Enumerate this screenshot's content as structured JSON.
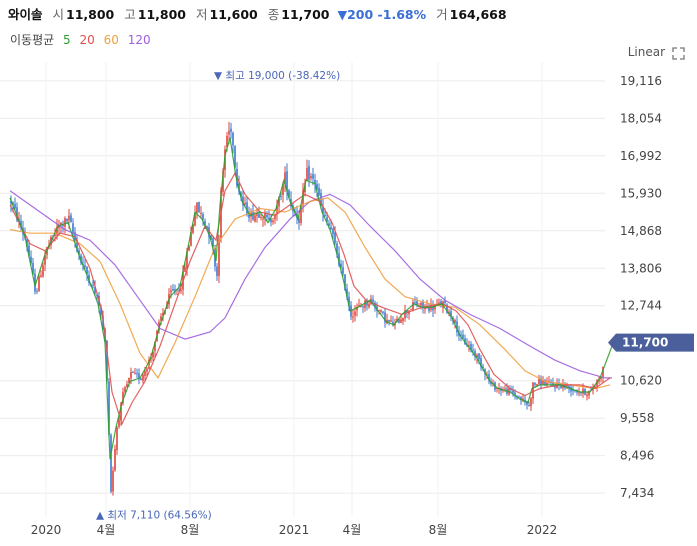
{
  "header": {
    "name": "와이솔",
    "open_label": "시",
    "open": "11,800",
    "high_label": "고",
    "high": "11,800",
    "low_label": "저",
    "low": "11,600",
    "close_label": "종",
    "close": "11,700",
    "change": "▼200 -1.68%",
    "volume_label": "거",
    "volume": "164,668"
  },
  "ma_legend": {
    "title": "이동평균",
    "items": [
      {
        "label": "5",
        "color": "#2e9e2e"
      },
      {
        "label": "20",
        "color": "#e05050"
      },
      {
        "label": "60",
        "color": "#f0a040"
      },
      {
        "label": "120",
        "color": "#9d5fe0"
      }
    ]
  },
  "scale_mode": "Linear",
  "expand_icon": "expand-icon",
  "colors": {
    "up": "#e0403a",
    "down": "#3a78d0",
    "current_tag": "#4a5f9b",
    "grid": "#ececec"
  },
  "chart_data": {
    "type": "candlestick",
    "y_ticks": [
      "19,116",
      "18,054",
      "16,992",
      "15,930",
      "14,868",
      "13,806",
      "12,744",
      "10,620",
      "9,558",
      "8,496",
      "7,434"
    ],
    "ylim": [
      6900,
      19650
    ],
    "x_ticks": [
      "2020",
      "4월",
      "8월",
      "2021",
      "4월",
      "8월",
      "2022"
    ],
    "max_label": "최고 19,000 (-38.42%)",
    "min_label": "최저 7,110 (64.56%)",
    "max_value": 19000,
    "min_value": 7110,
    "current_price": "11,700",
    "current_value": 11700,
    "close_path": [
      [
        0,
        15700
      ],
      [
        15,
        14600
      ],
      [
        25,
        13100
      ],
      [
        35,
        14300
      ],
      [
        48,
        15000
      ],
      [
        58,
        15200
      ],
      [
        70,
        14000
      ],
      [
        80,
        13400
      ],
      [
        88,
        12800
      ],
      [
        95,
        11500
      ],
      [
        100,
        7500
      ],
      [
        106,
        9300
      ],
      [
        112,
        10200
      ],
      [
        120,
        10800
      ],
      [
        130,
        10700
      ],
      [
        140,
        11300
      ],
      [
        150,
        12400
      ],
      [
        160,
        13100
      ],
      [
        170,
        13300
      ],
      [
        178,
        14500
      ],
      [
        185,
        15600
      ],
      [
        192,
        15200
      ],
      [
        200,
        14700
      ],
      [
        206,
        13600
      ],
      [
        210,
        15900
      ],
      [
        215,
        17500
      ],
      [
        220,
        17800
      ],
      [
        226,
        16300
      ],
      [
        232,
        15600
      ],
      [
        240,
        15300
      ],
      [
        250,
        15400
      ],
      [
        258,
        15100
      ],
      [
        266,
        15500
      ],
      [
        274,
        16400
      ],
      [
        280,
        15600
      ],
      [
        288,
        15200
      ],
      [
        296,
        16500
      ],
      [
        305,
        16200
      ],
      [
        312,
        15300
      ],
      [
        320,
        14900
      ],
      [
        328,
        14000
      ],
      [
        334,
        13300
      ],
      [
        340,
        12500
      ],
      [
        348,
        12700
      ],
      [
        360,
        12900
      ],
      [
        368,
        12600
      ],
      [
        376,
        12300
      ],
      [
        384,
        12200
      ],
      [
        392,
        12500
      ],
      [
        404,
        12800
      ],
      [
        412,
        12700
      ],
      [
        422,
        12700
      ],
      [
        432,
        12800
      ],
      [
        442,
        12400
      ],
      [
        450,
        11800
      ],
      [
        458,
        11600
      ],
      [
        466,
        11300
      ],
      [
        474,
        10900
      ],
      [
        480,
        10500
      ],
      [
        488,
        10400
      ],
      [
        500,
        10300
      ],
      [
        510,
        10100
      ],
      [
        518,
        9900
      ],
      [
        522,
        10500
      ],
      [
        530,
        10600
      ],
      [
        540,
        10500
      ],
      [
        550,
        10500
      ],
      [
        560,
        10400
      ],
      [
        570,
        10300
      ],
      [
        580,
        10300
      ],
      [
        590,
        10800
      ],
      [
        598,
        11500
      ],
      [
        602,
        11700
      ]
    ],
    "ma5": [
      [
        0,
        15800
      ],
      [
        15,
        14700
      ],
      [
        25,
        13300
      ],
      [
        35,
        14200
      ],
      [
        48,
        15000
      ],
      [
        58,
        15100
      ],
      [
        70,
        14100
      ],
      [
        80,
        13400
      ],
      [
        88,
        12800
      ],
      [
        95,
        11700
      ],
      [
        100,
        8400
      ],
      [
        106,
        9300
      ],
      [
        112,
        10000
      ],
      [
        120,
        10600
      ],
      [
        130,
        10700
      ],
      [
        140,
        11200
      ],
      [
        150,
        12200
      ],
      [
        160,
        13000
      ],
      [
        170,
        13300
      ],
      [
        178,
        14400
      ],
      [
        185,
        15400
      ],
      [
        192,
        15200
      ],
      [
        200,
        14700
      ],
      [
        206,
        14000
      ],
      [
        210,
        15600
      ],
      [
        215,
        17000
      ],
      [
        220,
        17500
      ],
      [
        226,
        16400
      ],
      [
        232,
        15700
      ],
      [
        240,
        15300
      ],
      [
        250,
        15400
      ],
      [
        258,
        15100
      ],
      [
        266,
        15500
      ],
      [
        274,
        16300
      ],
      [
        280,
        15700
      ],
      [
        288,
        15200
      ],
      [
        296,
        16300
      ],
      [
        305,
        16200
      ],
      [
        312,
        15400
      ],
      [
        320,
        14900
      ],
      [
        328,
        14100
      ],
      [
        334,
        13400
      ],
      [
        340,
        12600
      ],
      [
        348,
        12700
      ],
      [
        360,
        12900
      ],
      [
        368,
        12600
      ],
      [
        376,
        12300
      ],
      [
        384,
        12200
      ],
      [
        392,
        12500
      ],
      [
        404,
        12800
      ],
      [
        412,
        12700
      ],
      [
        422,
        12700
      ],
      [
        432,
        12800
      ],
      [
        442,
        12400
      ],
      [
        450,
        11900
      ],
      [
        458,
        11600
      ],
      [
        466,
        11300
      ],
      [
        474,
        10900
      ],
      [
        480,
        10600
      ],
      [
        488,
        10400
      ],
      [
        500,
        10300
      ],
      [
        510,
        10100
      ],
      [
        518,
        10000
      ],
      [
        522,
        10400
      ],
      [
        530,
        10500
      ],
      [
        540,
        10500
      ],
      [
        550,
        10500
      ],
      [
        560,
        10400
      ],
      [
        570,
        10300
      ],
      [
        580,
        10300
      ],
      [
        590,
        10700
      ],
      [
        598,
        11300
      ],
      [
        602,
        11600
      ]
    ],
    "ma20": [
      [
        0,
        15600
      ],
      [
        20,
        14500
      ],
      [
        35,
        14300
      ],
      [
        50,
        14800
      ],
      [
        65,
        14700
      ],
      [
        80,
        13800
      ],
      [
        92,
        12600
      ],
      [
        102,
        10300
      ],
      [
        112,
        9400
      ],
      [
        122,
        10000
      ],
      [
        135,
        10600
      ],
      [
        150,
        11600
      ],
      [
        165,
        12800
      ],
      [
        180,
        14000
      ],
      [
        195,
        15000
      ],
      [
        206,
        14600
      ],
      [
        215,
        16000
      ],
      [
        225,
        16500
      ],
      [
        235,
        15900
      ],
      [
        250,
        15400
      ],
      [
        265,
        15300
      ],
      [
        280,
        15600
      ],
      [
        295,
        15900
      ],
      [
        310,
        15700
      ],
      [
        322,
        15100
      ],
      [
        334,
        14200
      ],
      [
        344,
        13300
      ],
      [
        356,
        12900
      ],
      [
        372,
        12700
      ],
      [
        392,
        12500
      ],
      [
        412,
        12700
      ],
      [
        432,
        12800
      ],
      [
        446,
        12600
      ],
      [
        458,
        12200
      ],
      [
        470,
        11500
      ],
      [
        484,
        10800
      ],
      [
        500,
        10400
      ],
      [
        515,
        10200
      ],
      [
        530,
        10400
      ],
      [
        550,
        10500
      ],
      [
        570,
        10500
      ],
      [
        585,
        10400
      ],
      [
        600,
        10700
      ]
    ],
    "ma60": [
      [
        0,
        14900
      ],
      [
        20,
        14800
      ],
      [
        45,
        14800
      ],
      [
        70,
        14500
      ],
      [
        90,
        14000
      ],
      [
        110,
        12800
      ],
      [
        130,
        11400
      ],
      [
        148,
        10700
      ],
      [
        165,
        11700
      ],
      [
        185,
        13000
      ],
      [
        205,
        14400
      ],
      [
        225,
        15200
      ],
      [
        250,
        15500
      ],
      [
        275,
        15400
      ],
      [
        300,
        15700
      ],
      [
        318,
        15800
      ],
      [
        335,
        15400
      ],
      [
        355,
        14400
      ],
      [
        375,
        13500
      ],
      [
        395,
        13000
      ],
      [
        420,
        12800
      ],
      [
        445,
        12700
      ],
      [
        470,
        12200
      ],
      [
        495,
        11500
      ],
      [
        515,
        10900
      ],
      [
        535,
        10600
      ],
      [
        560,
        10500
      ],
      [
        585,
        10400
      ],
      [
        600,
        10500
      ]
    ],
    "ma120": [
      [
        0,
        16000
      ],
      [
        15,
        15700
      ],
      [
        35,
        15300
      ],
      [
        55,
        14900
      ],
      [
        80,
        14600
      ],
      [
        105,
        13900
      ],
      [
        125,
        13100
      ],
      [
        150,
        12100
      ],
      [
        175,
        11800
      ],
      [
        200,
        12000
      ],
      [
        215,
        12400
      ],
      [
        235,
        13500
      ],
      [
        255,
        14400
      ],
      [
        280,
        15200
      ],
      [
        300,
        15700
      ],
      [
        320,
        15900
      ],
      [
        340,
        15600
      ],
      [
        360,
        15000
      ],
      [
        385,
        14300
      ],
      [
        410,
        13500
      ],
      [
        435,
        12900
      ],
      [
        460,
        12500
      ],
      [
        490,
        12100
      ],
      [
        520,
        11600
      ],
      [
        545,
        11200
      ],
      [
        570,
        10900
      ],
      [
        595,
        10700
      ],
      [
        602,
        10700
      ]
    ]
  }
}
